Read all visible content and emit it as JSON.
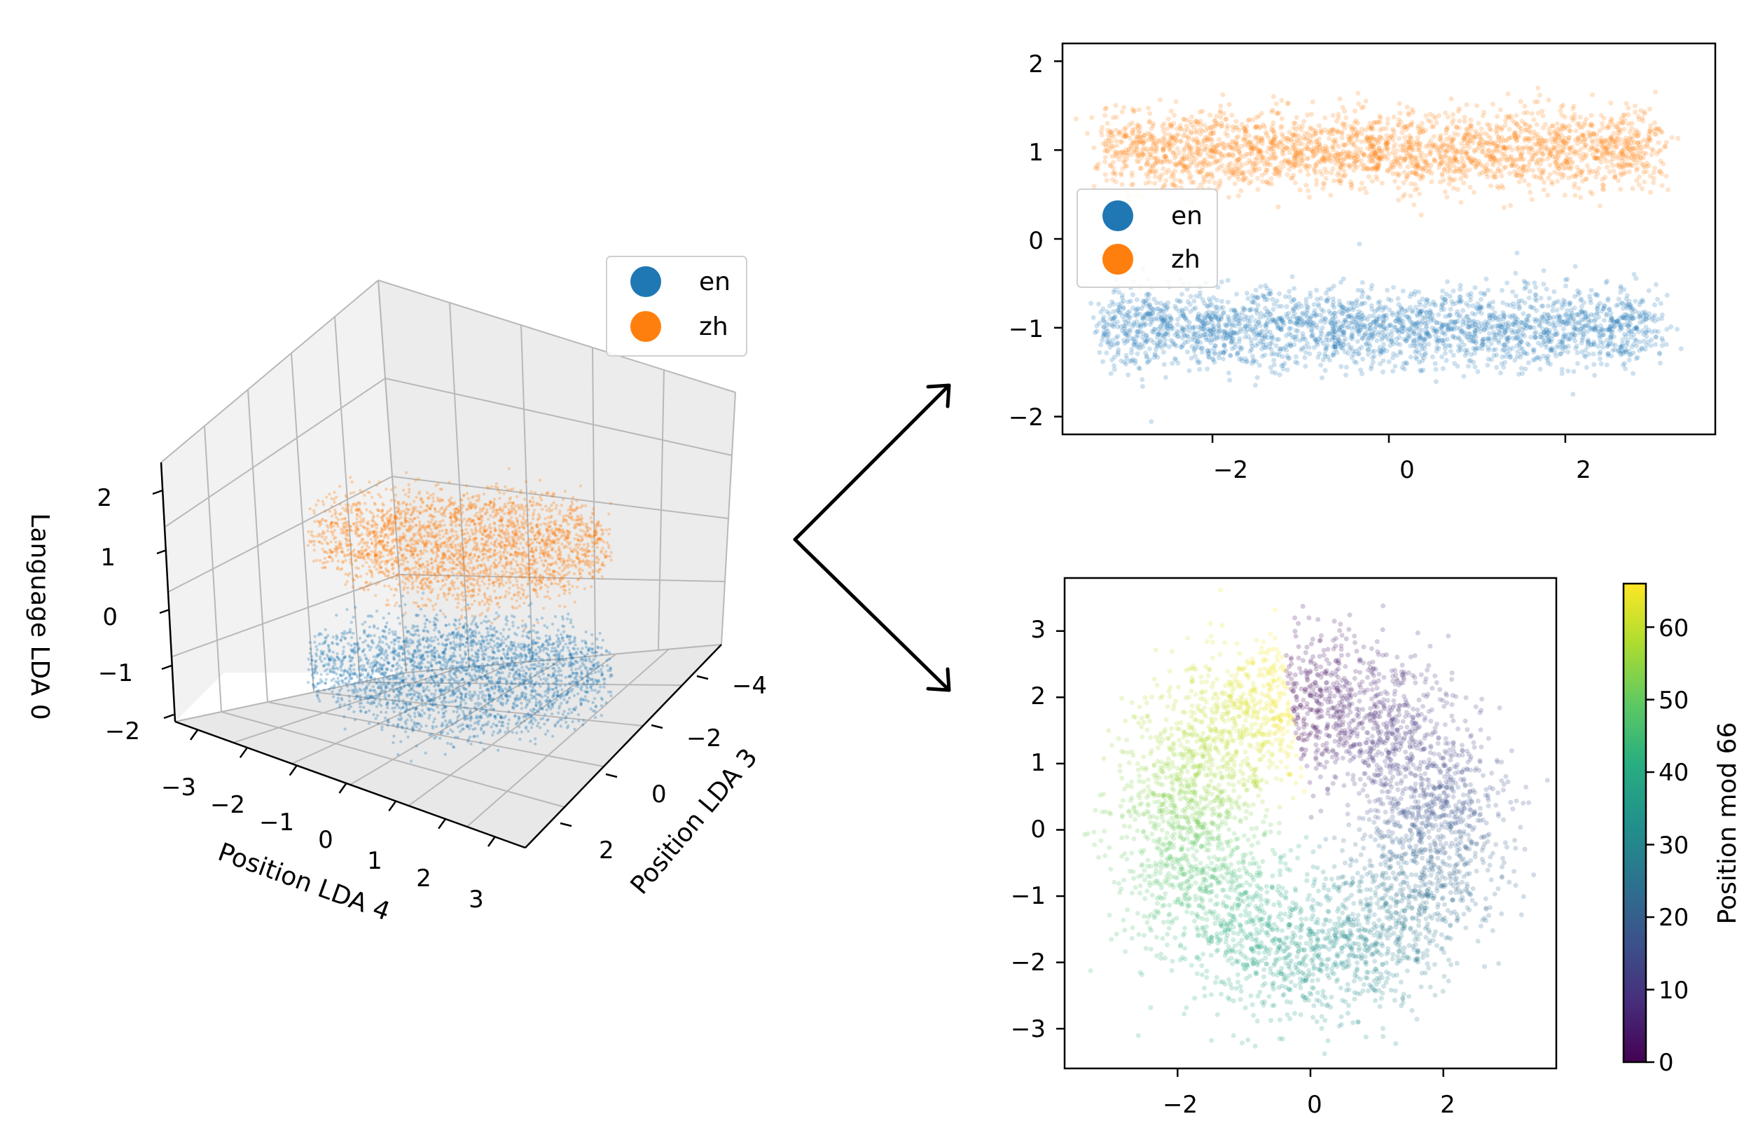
{
  "colors": {
    "en": "#1f77b4",
    "zh": "#ff7f0e",
    "grid": "#b0b0b0",
    "pane": "#f2f2f2"
  },
  "chart_data": [
    {
      "type": "scatter3d",
      "title": "",
      "xlabel": "Position LDA 4",
      "ylabel": "Position LDA 3",
      "zlabel": "Language LDA 0",
      "x_ticks": [
        "−3",
        "−2",
        "−1",
        "0",
        "1",
        "2",
        "3"
      ],
      "y_ticks": [
        "−4",
        "−2",
        "0",
        "2"
      ],
      "z_ticks": [
        "2",
        "1",
        "0",
        "−1",
        "−2"
      ],
      "xlim": [
        -3.5,
        3.5
      ],
      "ylim": [
        -5,
        3
      ],
      "zlim": [
        -2,
        2
      ],
      "legend": {
        "placement": "top-right",
        "entries": [
          "en",
          "zh"
        ]
      },
      "series": [
        {
          "name": "en",
          "cluster_center_z": -1,
          "spread_xy": 2.5,
          "approx_points": 6000
        },
        {
          "name": "zh",
          "cluster_center_z": 1,
          "spread_xy": 2.5,
          "approx_points": 6000
        }
      ]
    },
    {
      "type": "scatter",
      "xlabel": "",
      "ylabel": "",
      "x_ticks": [
        "−2",
        "0",
        "2"
      ],
      "y_ticks": [
        "2",
        "1",
        "0",
        "−1",
        "−2"
      ],
      "xlim": [
        -3.7,
        3.7
      ],
      "ylim": [
        -2.2,
        2.2
      ],
      "legend": {
        "placement": "center-left",
        "entries": [
          "en",
          "zh"
        ]
      },
      "series": [
        {
          "name": "en",
          "y_center": -1.0,
          "x_range": [
            -3.2,
            3.0
          ],
          "y_std": 0.22,
          "approx_points": 5000
        },
        {
          "name": "zh",
          "y_center": 1.0,
          "x_range": [
            -3.2,
            3.0
          ],
          "y_std": 0.22,
          "approx_points": 5000
        }
      ]
    },
    {
      "type": "scatter",
      "xlabel": "",
      "ylabel": "",
      "x_ticks": [
        "−2",
        "0",
        "2"
      ],
      "y_ticks": [
        "3",
        "2",
        "1",
        "0",
        "−1",
        "−2",
        "−3"
      ],
      "xlim": [
        -3.7,
        3.7
      ],
      "ylim": [
        -3.6,
        3.8
      ],
      "shape": "ring",
      "ring_radius": 2.0,
      "ring_width": 0.55,
      "approx_points": 7000,
      "colorbar": {
        "label": "Position mod 66",
        "ticks": [
          "0",
          "10",
          "20",
          "30",
          "40",
          "50",
          "60"
        ],
        "range": [
          0,
          66
        ],
        "colormap": "viridis"
      }
    }
  ]
}
